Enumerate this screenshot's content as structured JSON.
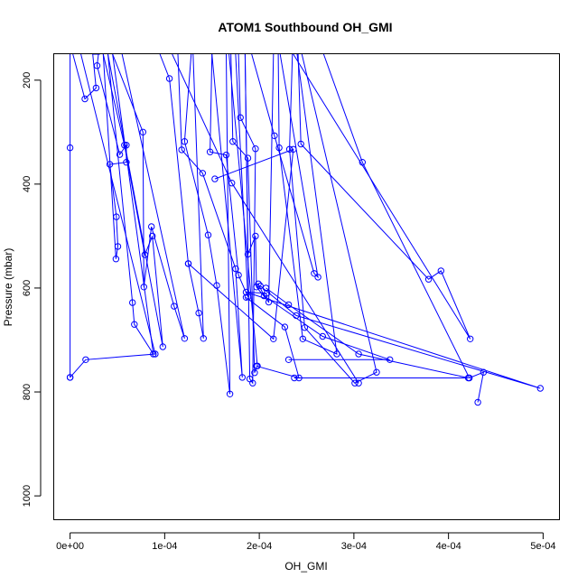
{
  "chart_data": {
    "type": "line",
    "title": "ATOM1 Southbound OH_GMI",
    "xlabel": "OH_GMI",
    "ylabel": "Pressure (mbar)",
    "xlim": [
      -1.68e-05,
      0.0005168
    ],
    "ylim": [
      1045,
      150
    ],
    "y_reversed": true,
    "x_ticks": [
      0,
      0.0001,
      0.0002,
      0.0003,
      0.0004,
      0.0005
    ],
    "x_tick_labels": [
      "0e+00",
      "1e-04",
      "2e-04",
      "3e-04",
      "4e-04",
      "5e-04"
    ],
    "y_ticks": [
      200,
      400,
      600,
      800,
      1000
    ],
    "y_tick_labels": [
      "200",
      "400",
      "600",
      "800",
      "1000"
    ],
    "color": "#0000ff",
    "marker": "open-circle",
    "series": [
      {
        "x": [
          0.0,
          0.0,
          0.0,
          0.0
        ],
        "y": [
          150,
          330,
          772,
          150
        ]
      },
      {
        "x": [
          0.0,
          1.65e-05,
          9e-05,
          1.15e-05
        ],
        "y": [
          772,
          738,
          727,
          150
        ]
      },
      {
        "x": [
          3e-06,
          1.57e-05,
          2.75e-05,
          2.4e-05,
          3.15e-05
        ],
        "y": [
          150,
          236,
          215,
          150,
          150
        ]
      },
      {
        "x": [
          3e-05,
          2.85e-05,
          5.25e-05,
          5.95e-05,
          5.95e-05,
          4.2e-05,
          4.9e-05,
          5.05e-05,
          4.85e-05,
          3.5e-05
        ],
        "y": [
          150,
          172,
          343,
          325,
          358,
          362,
          463,
          520,
          544,
          150
        ]
      },
      {
        "x": [
          3.5e-05,
          5.75e-05,
          7.9e-05,
          8.7e-05,
          9.8e-05,
          4e-05
        ],
        "y": [
          150,
          325,
          536,
          500,
          713,
          150
        ]
      },
      {
        "x": [
          4e-05,
          6.6e-05,
          6.8e-05,
          8.8e-05,
          4.5e-05
        ],
        "y": [
          150,
          628,
          670,
          727,
          150
        ]
      },
      {
        "x": [
          4.5e-05,
          7.7e-05,
          7.8e-05,
          8.6e-05,
          0.00011,
          0.000121,
          5.5e-05
        ],
        "y": [
          150,
          300,
          598,
          482,
          635,
          697,
          150
        ]
      },
      {
        "x": [
          9.5e-05,
          0.000105,
          0.000125,
          0.000136,
          0.000141,
          0.00013
        ],
        "y": [
          150,
          197,
          553,
          648,
          697,
          150
        ]
      },
      {
        "x": [
          0.000114,
          0.000118,
          0.00014,
          0.000175,
          0.000182,
          0.00015
        ],
        "y": [
          150,
          334,
          379,
          563,
          772,
          150
        ]
      },
      {
        "x": [
          0.000128,
          0.000121,
          0.000146,
          0.000155,
          0.000169,
          0.000165
        ],
        "y": [
          150,
          318,
          498,
          595,
          804,
          150
        ]
      },
      {
        "x": [
          0.00015,
          0.000148,
          0.000165,
          0.000178,
          0.000188,
          0.000175
        ],
        "y": [
          150,
          338,
          344,
          575,
          617,
          150
        ]
      },
      {
        "x": [
          0.00017,
          0.000172,
          0.000188,
          0.000195,
          0.000198,
          0.000168
        ],
        "y": [
          150,
          318,
          350,
          763,
          750,
          150
        ]
      },
      {
        "x": [
          0.000178,
          0.00018,
          0.000196,
          0.000193,
          0.00019,
          0.000185
        ],
        "y": [
          150,
          272,
          332,
          783,
          775,
          150
        ]
      },
      {
        "x": [
          0.000185,
          0.000188,
          0.000196,
          0.000197,
          0.00021,
          0.000215
        ],
        "y": [
          150,
          535,
          500,
          598,
          627,
          150
        ]
      },
      {
        "x": [
          0.000192,
          0.000216,
          0.000258,
          0.000262,
          0.000222
        ],
        "y": [
          150,
          307,
          572,
          579,
          150
        ]
      },
      {
        "x": [
          0.00022,
          0.000221,
          0.000246,
          0.000282,
          0.00024
        ],
        "y": [
          150,
          330,
          698,
          727,
          150
        ]
      },
      {
        "x": [
          0.000235,
          0.000232,
          0.000248,
          0.000301,
          0.000324,
          0.000245
        ],
        "y": [
          150,
          333,
          676,
          783,
          762,
          150
        ]
      },
      {
        "x": [
          0.000241,
          0.000244,
          0.000379,
          0.000392,
          0.000423,
          0.000236
        ],
        "y": [
          150,
          323,
          583,
          567,
          698,
          150
        ]
      },
      {
        "x": [
          0.000268,
          0.000309,
          0.000422,
          0.000437,
          0.000431
        ],
        "y": [
          150,
          358,
          773,
          762,
          820
        ]
      },
      {
        "x": [
          0.000199,
          0.000205,
          0.000267,
          0.000338,
          0.000231
        ],
        "y": [
          592,
          615,
          693,
          738,
          738
        ]
      },
      {
        "x": [
          0.000207,
          0.000231,
          0.000305,
          0.000421,
          0.000237
        ],
        "y": [
          600,
          632,
          727,
          773,
          773
        ]
      },
      {
        "x": [
          0.000201,
          0.000239,
          0.000497,
          0.000186,
          0.000208
        ],
        "y": [
          596,
          653,
          793,
          608,
          610
        ]
      },
      {
        "x": [
          0.000186,
          0.000227,
          0.000242,
          0.000197
        ],
        "y": [
          618,
          675,
          773,
          750
        ]
      },
      {
        "x": [
          0.000153,
          0.000236,
          0.000215,
          0.000125
        ],
        "y": [
          390,
          333,
          698,
          553
        ]
      },
      {
        "x": [
          0.000108,
          0.000171,
          0.000305
        ],
        "y": [
          150,
          398,
          783
        ]
      }
    ]
  }
}
